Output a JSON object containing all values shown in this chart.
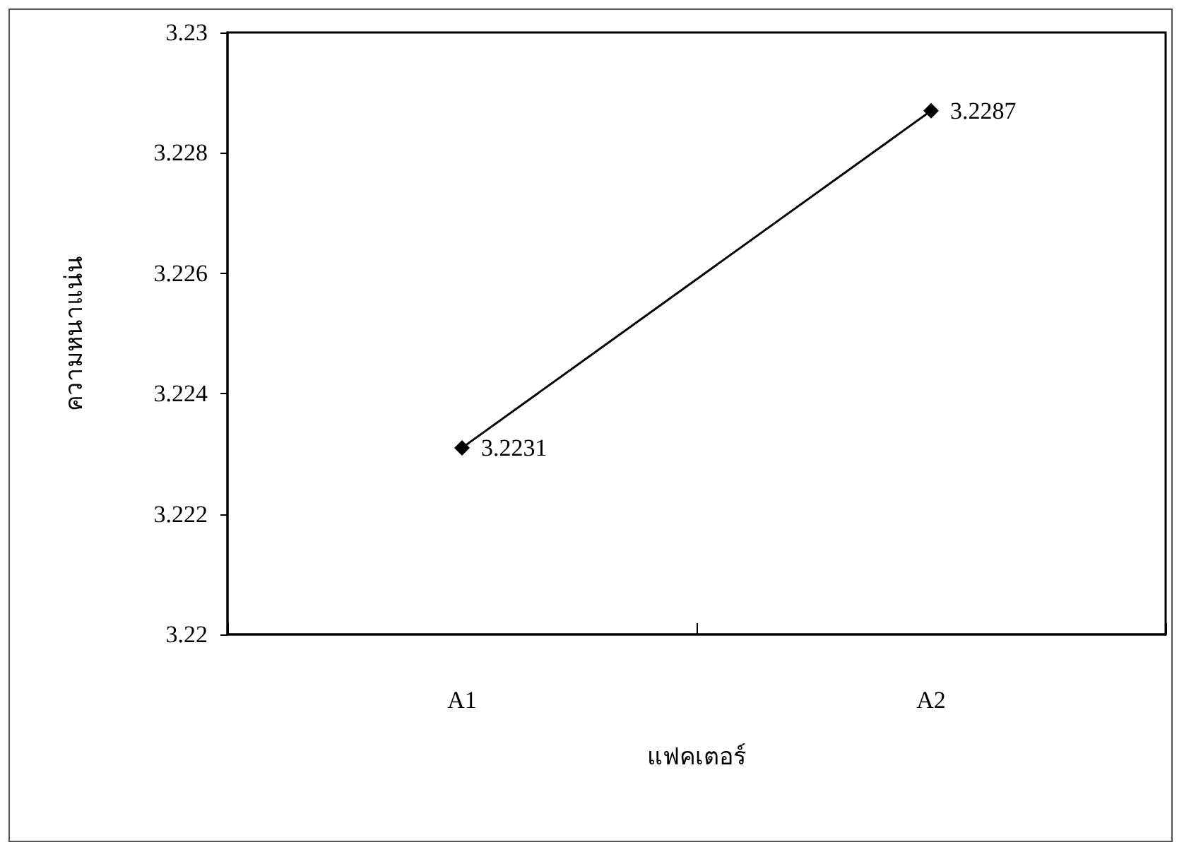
{
  "chart_data": {
    "type": "line",
    "xlabel": "แฟคเตอร์",
    "ylabel": "ความหนาแน่น",
    "categories": [
      "A1",
      "A2"
    ],
    "series": [
      {
        "color": "#000000",
        "values": [
          3.2231,
          3.2287
        ]
      }
    ],
    "ylim": [
      3.22,
      3.23
    ],
    "yticks": [
      3.22,
      3.222,
      3.224,
      3.226,
      3.228,
      3.23
    ],
    "grid": false,
    "marker": "diamond",
    "line_style": "solid",
    "data_labels": true
  }
}
